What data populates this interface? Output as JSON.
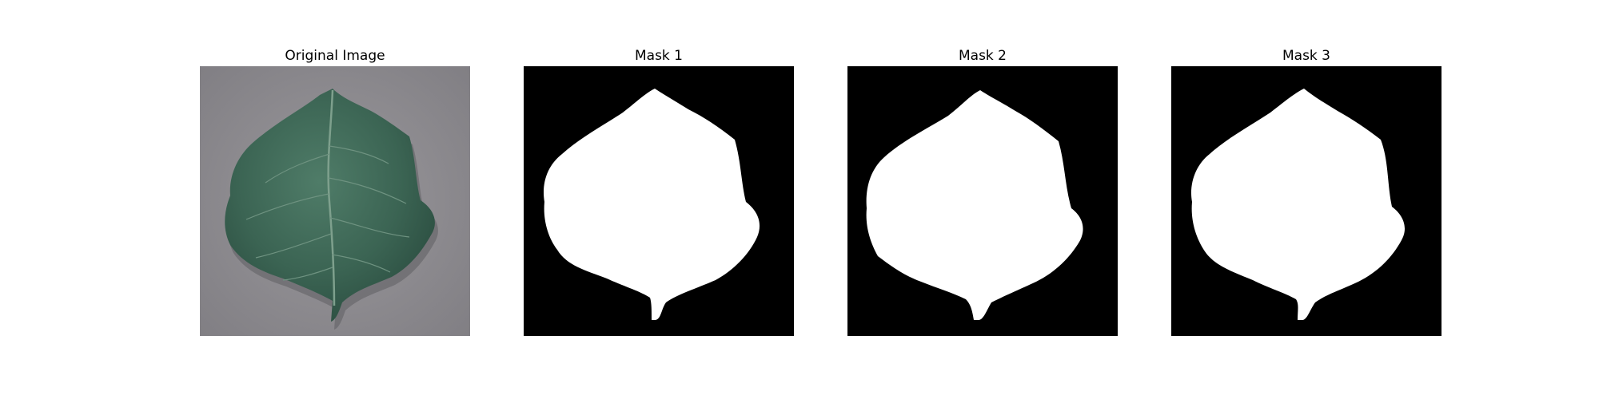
{
  "figure": {
    "panels": [
      {
        "title": "Original Image",
        "kind": "photo",
        "subject": "leaf-photo"
      },
      {
        "title": "Mask 1",
        "kind": "mask"
      },
      {
        "title": "Mask 2",
        "kind": "mask"
      },
      {
        "title": "Mask 3",
        "kind": "mask"
      }
    ]
  },
  "colors": {
    "background": "#ffffff",
    "mask_background": "#000000",
    "mask_foreground": "#ffffff",
    "photo_background": "#8e8c90",
    "leaf_dark": "#2f5546",
    "leaf_mid": "#3f6a58",
    "leaf_light": "#5e8c78",
    "vein": "#7ea08d"
  }
}
